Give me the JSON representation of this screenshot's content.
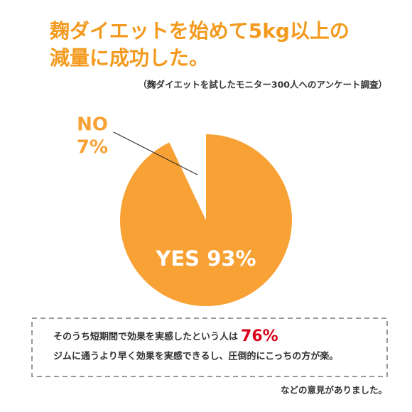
{
  "chart_data": {
    "type": "pie",
    "title_lines": [
      "麹ダイエットを始めて5kg以上の",
      "減量に成功した。"
    ],
    "subtitle": "（麹ダイエットを試したモニター300人へのアンケート調査）",
    "categories": [
      "YES",
      "NO"
    ],
    "values": [
      93,
      7
    ],
    "value_labels": [
      "93%",
      "7%"
    ],
    "colors": [
      "#f8a135",
      "#ffffff"
    ]
  },
  "note": {
    "line1": "そのうち短期間で効果を実感したという人は",
    "highlight": "76%",
    "line2": "ジムに通うより早く効果を実感できるし、圧倒的にこっちの方が楽。"
  },
  "footer": "などの意見がありました。"
}
